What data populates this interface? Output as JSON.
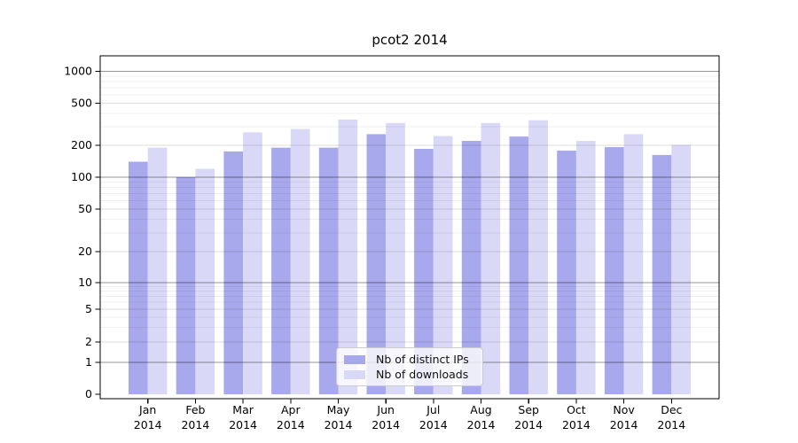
{
  "chart_data": {
    "type": "bar",
    "title": "pcot2 2014",
    "categories": [
      "Jan",
      "Feb",
      "Mar",
      "Apr",
      "May",
      "Jun",
      "Jul",
      "Aug",
      "Sep",
      "Oct",
      "Nov",
      "Dec"
    ],
    "x_year_label": "2014",
    "series": [
      {
        "name": "Nb of distinct IPs",
        "color": "#a8a8ec",
        "values": [
          140,
          100,
          175,
          190,
          190,
          255,
          185,
          220,
          242,
          178,
          192,
          162
        ]
      },
      {
        "name": "Nb of downloads",
        "color": "#d9d9f7",
        "values": [
          190,
          120,
          265,
          285,
          350,
          325,
          245,
          325,
          345,
          220,
          255,
          202
        ]
      }
    ],
    "y_ticks": [
      0,
      1,
      2,
      5,
      10,
      20,
      50,
      100,
      200,
      500,
      1000
    ],
    "y_scale": "symlog",
    "ylim": [
      0,
      1400
    ],
    "grid": true,
    "legend_position": "bottom-center"
  }
}
